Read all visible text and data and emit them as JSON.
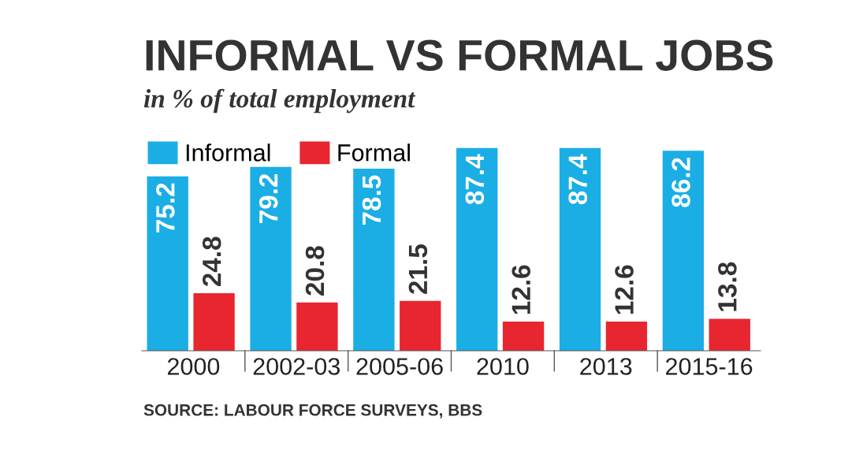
{
  "chart_data": {
    "type": "bar",
    "title": "INFORMAL VS FORMAL JOBS",
    "subtitle": "in % of total employment",
    "categories": [
      "2000",
      "2002-03",
      "2005-06",
      "2010",
      "2013",
      "2015-16"
    ],
    "series": [
      {
        "name": "Informal",
        "color": "#1aaee5",
        "values": [
          75.2,
          79.2,
          78.5,
          87.4,
          87.4,
          86.2
        ]
      },
      {
        "name": "Formal",
        "color": "#e8262f",
        "values": [
          24.8,
          20.8,
          21.5,
          12.6,
          12.6,
          13.8
        ]
      }
    ],
    "data_labels": true,
    "legend": "top left",
    "grid": false,
    "annotations": [
      "SOURCE: LABOUR FORCE SURVEYS, BBS"
    ]
  }
}
